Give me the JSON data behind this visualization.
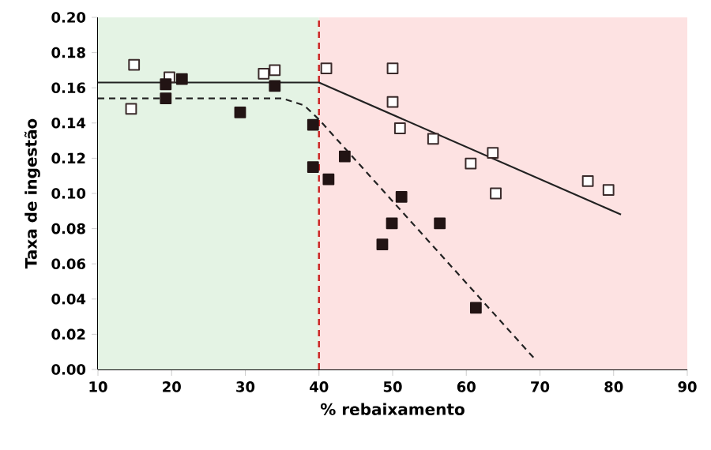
{
  "chart_data": {
    "type": "scatter",
    "xlabel": "% rebaixamento",
    "ylabel": "Taxa de ingestão",
    "xlim": [
      10,
      90
    ],
    "ylim": [
      0,
      0.2
    ],
    "xticks": [
      10,
      20,
      30,
      40,
      50,
      60,
      70,
      80,
      90
    ],
    "yticks": [
      {
        "value": 0,
        "label": "0.00"
      },
      {
        "value": 0.02,
        "label": "0.02"
      },
      {
        "value": 0.04,
        "label": "0.04"
      },
      {
        "value": 0.06,
        "label": "0.06"
      },
      {
        "value": 0.08,
        "label": "0.08"
      },
      {
        "value": 0.1,
        "label": "0.10"
      },
      {
        "value": 0.12,
        "label": "0.12"
      },
      {
        "value": 0.14,
        "label": "0.14"
      },
      {
        "value": 0.16,
        "label": "0.16"
      },
      {
        "value": 0.18,
        "label": "0.18"
      },
      {
        "value": 0.2,
        "label": "0.20"
      }
    ],
    "marker": "square",
    "bands": [
      {
        "axis": "x",
        "from": 10,
        "to": 40,
        "color": "#e4f3e4"
      },
      {
        "axis": "x",
        "from": 40,
        "to": 90,
        "color": "#fde2e2"
      }
    ],
    "ref_lines": [
      {
        "axis": "x",
        "value": 40,
        "color": "#cc2222",
        "line_style": "dashed"
      }
    ],
    "series": [
      {
        "color": "#3a2a2a",
        "x": [
          14.9,
          14.5,
          19.7,
          32.5,
          34,
          41,
          50,
          50,
          51,
          55.5,
          60.6,
          63.6,
          64,
          76.5,
          79.3
        ],
        "values": [
          0.173,
          0.148,
          0.166,
          0.168,
          0.17,
          0.171,
          0.171,
          0.152,
          0.137,
          0.131,
          0.117,
          0.123,
          0.1,
          0.107,
          0.102
        ]
      },
      {
        "color": "#221414",
        "x": [
          19.2,
          19.2,
          21.4,
          29.3,
          34,
          39.2,
          39.2,
          41.3,
          43.5,
          51.2,
          49.9,
          48.6,
          56.4,
          61.3
        ],
        "values": [
          0.162,
          0.154,
          0.165,
          0.146,
          0.161,
          0.139,
          0.115,
          0.108,
          0.121,
          0.098,
          0.083,
          0.071,
          0.083,
          0.035
        ]
      },
      {
        "type": "line",
        "color": "#222222",
        "line_style": "solid",
        "marker": "none",
        "x": [
          10,
          40,
          81
        ],
        "values": [
          0.163,
          0.163,
          0.088
        ]
      },
      {
        "type": "line",
        "color": "#222222",
        "line_style": "dashed",
        "marker": "none",
        "x": [
          10,
          35,
          38,
          40,
          69.5
        ],
        "values": [
          0.154,
          0.154,
          0.15,
          0.142,
          0.005
        ]
      }
    ]
  }
}
